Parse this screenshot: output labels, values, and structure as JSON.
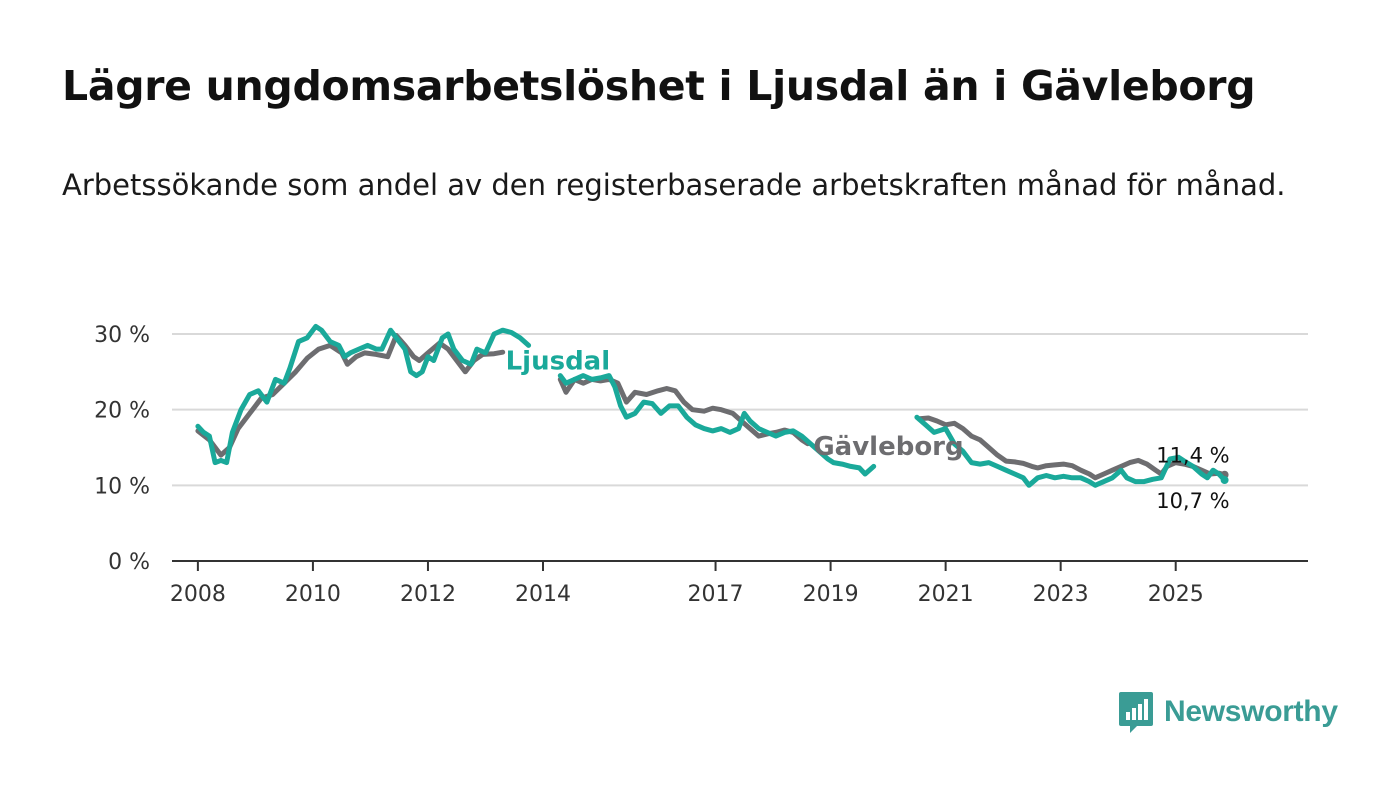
{
  "title": "Lägre ungdomsarbetslöshet i Ljusdal än i Gävleborg",
  "subtitle": "Arbetssökande som andel av den registerbaserade arbetskraften månad för månad.",
  "brand": "Newsworthy",
  "colors": {
    "ljusdal": "#1aa99a",
    "gavleborg": "#6d6d70",
    "grid": "#d9d9d9",
    "axis": "#333333",
    "brand": "#3a9c95"
  },
  "chart_data": {
    "type": "line",
    "title": "Lägre ungdomsarbetslöshet i Ljusdal än i Gävleborg",
    "xlabel": "",
    "ylabel": "",
    "xlim": [
      2007.55,
      2027.3
    ],
    "ylim": [
      0,
      30
    ],
    "y_ticks": [
      0,
      10,
      20,
      30
    ],
    "y_tick_labels": [
      "0 %",
      "10 %",
      "20 %",
      "30 %"
    ],
    "x_ticks": [
      2008,
      2010,
      2012,
      2014,
      2017,
      2019,
      2021,
      2023,
      2025
    ],
    "x_tick_labels": [
      "2008",
      "2010",
      "2012",
      "2014",
      "2017",
      "2019",
      "2021",
      "2023",
      "2025"
    ],
    "series": [
      {
        "name": "Gävleborg",
        "label": "Gävleborg",
        "color": "#6d6d70",
        "end_label": "11,4 %",
        "points": [
          [
            2008.0,
            17.2
          ],
          [
            2008.2,
            16.0
          ],
          [
            2008.4,
            14.0
          ],
          [
            2008.55,
            15.0
          ],
          [
            2008.7,
            17.5
          ],
          [
            2008.9,
            19.5
          ],
          [
            2009.1,
            21.5
          ],
          [
            2009.3,
            22.0
          ],
          [
            2009.5,
            23.5
          ],
          [
            2009.7,
            25.0
          ],
          [
            2009.9,
            26.8
          ],
          [
            2010.1,
            28.0
          ],
          [
            2010.3,
            28.5
          ],
          [
            2010.5,
            27.5
          ],
          [
            2010.6,
            26.0
          ],
          [
            2010.75,
            27.0
          ],
          [
            2010.9,
            27.5
          ],
          [
            2011.1,
            27.3
          ],
          [
            2011.3,
            27.0
          ],
          [
            2011.45,
            29.8
          ],
          [
            2011.6,
            28.5
          ],
          [
            2011.75,
            27.0
          ],
          [
            2011.85,
            26.5
          ],
          [
            2012.0,
            27.5
          ],
          [
            2012.2,
            28.8
          ],
          [
            2012.35,
            28.0
          ],
          [
            2012.5,
            26.5
          ],
          [
            2012.65,
            25.0
          ],
          [
            2012.8,
            26.5
          ],
          [
            2012.95,
            27.3
          ],
          [
            2013.15,
            27.4
          ],
          [
            2013.3,
            27.6
          ],
          [
            2014.3,
            24.0
          ],
          [
            2014.4,
            22.3
          ],
          [
            2014.55,
            24.0
          ],
          [
            2014.7,
            23.5
          ],
          [
            2014.85,
            24.0
          ],
          [
            2015.0,
            23.8
          ],
          [
            2015.15,
            24.0
          ],
          [
            2015.3,
            23.5
          ],
          [
            2015.45,
            21.0
          ],
          [
            2015.6,
            22.3
          ],
          [
            2015.8,
            22.0
          ],
          [
            2016.0,
            22.5
          ],
          [
            2016.15,
            22.8
          ],
          [
            2016.3,
            22.5
          ],
          [
            2016.45,
            21.0
          ],
          [
            2016.6,
            20.0
          ],
          [
            2016.8,
            19.8
          ],
          [
            2016.95,
            20.2
          ],
          [
            2017.1,
            20.0
          ],
          [
            2017.3,
            19.5
          ],
          [
            2017.45,
            18.5
          ],
          [
            2017.6,
            17.5
          ],
          [
            2017.75,
            16.5
          ],
          [
            2017.9,
            16.8
          ],
          [
            2018.05,
            17.0
          ],
          [
            2018.2,
            17.3
          ],
          [
            2018.35,
            17.0
          ],
          [
            2018.5,
            16.0
          ],
          [
            2018.6,
            15.5
          ],
          [
            2020.55,
            18.8
          ],
          [
            2020.7,
            18.9
          ],
          [
            2020.85,
            18.5
          ],
          [
            2021.0,
            18.0
          ],
          [
            2021.15,
            18.2
          ],
          [
            2021.3,
            17.5
          ],
          [
            2021.45,
            16.5
          ],
          [
            2021.6,
            16.0
          ],
          [
            2021.75,
            15.0
          ],
          [
            2021.9,
            14.0
          ],
          [
            2022.05,
            13.2
          ],
          [
            2022.2,
            13.1
          ],
          [
            2022.35,
            12.9
          ],
          [
            2022.5,
            12.5
          ],
          [
            2022.6,
            12.3
          ],
          [
            2022.75,
            12.6
          ],
          [
            2022.9,
            12.7
          ],
          [
            2023.05,
            12.8
          ],
          [
            2023.2,
            12.6
          ],
          [
            2023.35,
            12.0
          ],
          [
            2023.5,
            11.5
          ],
          [
            2023.6,
            11.0
          ],
          [
            2023.75,
            11.5
          ],
          [
            2023.9,
            12.0
          ],
          [
            2024.05,
            12.5
          ],
          [
            2024.2,
            13.0
          ],
          [
            2024.35,
            13.3
          ],
          [
            2024.5,
            12.8
          ],
          [
            2024.65,
            12.0
          ],
          [
            2024.75,
            11.5
          ],
          [
            2024.85,
            12.5
          ],
          [
            2025.0,
            13.0
          ],
          [
            2025.15,
            12.8
          ],
          [
            2025.3,
            12.5
          ],
          [
            2025.45,
            12.0
          ],
          [
            2025.6,
            11.5
          ],
          [
            2025.75,
            11.6
          ],
          [
            2025.85,
            11.4
          ]
        ]
      },
      {
        "name": "Ljusdal",
        "label": "Ljusdal",
        "color": "#1aa99a",
        "end_label": "10,7 %",
        "points": [
          [
            2008.0,
            17.8
          ],
          [
            2008.1,
            17.0
          ],
          [
            2008.2,
            16.5
          ],
          [
            2008.3,
            13.0
          ],
          [
            2008.4,
            13.3
          ],
          [
            2008.5,
            13.0
          ],
          [
            2008.6,
            17.0
          ],
          [
            2008.75,
            20.0
          ],
          [
            2008.9,
            22.0
          ],
          [
            2009.05,
            22.5
          ],
          [
            2009.2,
            21.0
          ],
          [
            2009.35,
            24.0
          ],
          [
            2009.5,
            23.5
          ],
          [
            2009.6,
            25.5
          ],
          [
            2009.75,
            29.0
          ],
          [
            2009.9,
            29.5
          ],
          [
            2010.05,
            31.0
          ],
          [
            2010.15,
            30.5
          ],
          [
            2010.3,
            29.0
          ],
          [
            2010.45,
            28.5
          ],
          [
            2010.55,
            27.0
          ],
          [
            2010.65,
            27.5
          ],
          [
            2010.8,
            28.0
          ],
          [
            2010.95,
            28.5
          ],
          [
            2011.1,
            28.0
          ],
          [
            2011.2,
            28.0
          ],
          [
            2011.35,
            30.5
          ],
          [
            2011.45,
            29.5
          ],
          [
            2011.6,
            28.0
          ],
          [
            2011.7,
            25.0
          ],
          [
            2011.8,
            24.5
          ],
          [
            2011.9,
            25.0
          ],
          [
            2012.0,
            27.0
          ],
          [
            2012.1,
            26.5
          ],
          [
            2012.25,
            29.5
          ],
          [
            2012.35,
            30.0
          ],
          [
            2012.45,
            28.0
          ],
          [
            2012.6,
            26.5
          ],
          [
            2012.75,
            26.0
          ],
          [
            2012.85,
            28.0
          ],
          [
            2013.0,
            27.5
          ],
          [
            2013.15,
            30.0
          ],
          [
            2013.3,
            30.5
          ],
          [
            2013.45,
            30.2
          ],
          [
            2013.6,
            29.5
          ],
          [
            2013.75,
            28.5
          ],
          [
            2014.3,
            24.5
          ],
          [
            2014.4,
            23.5
          ],
          [
            2014.55,
            24.0
          ],
          [
            2014.7,
            24.5
          ],
          [
            2014.85,
            24.0
          ],
          [
            2015.0,
            24.2
          ],
          [
            2015.15,
            24.5
          ],
          [
            2015.25,
            23.0
          ],
          [
            2015.35,
            20.5
          ],
          [
            2015.45,
            19.0
          ],
          [
            2015.6,
            19.5
          ],
          [
            2015.75,
            21.0
          ],
          [
            2015.9,
            20.8
          ],
          [
            2016.05,
            19.5
          ],
          [
            2016.2,
            20.5
          ],
          [
            2016.35,
            20.5
          ],
          [
            2016.5,
            19.0
          ],
          [
            2016.65,
            18.0
          ],
          [
            2016.8,
            17.5
          ],
          [
            2016.95,
            17.2
          ],
          [
            2017.1,
            17.5
          ],
          [
            2017.25,
            17.0
          ],
          [
            2017.4,
            17.5
          ],
          [
            2017.5,
            19.5
          ],
          [
            2017.6,
            18.5
          ],
          [
            2017.75,
            17.5
          ],
          [
            2017.9,
            17.0
          ],
          [
            2018.05,
            16.5
          ],
          [
            2018.2,
            17.0
          ],
          [
            2018.35,
            17.2
          ],
          [
            2018.5,
            16.5
          ],
          [
            2018.65,
            15.5
          ],
          [
            2018.8,
            14.5
          ],
          [
            2018.95,
            13.5
          ],
          [
            2019.05,
            13.0
          ],
          [
            2019.2,
            12.8
          ],
          [
            2019.35,
            12.5
          ],
          [
            2019.5,
            12.3
          ],
          [
            2019.6,
            11.5
          ],
          [
            2019.75,
            12.5
          ],
          [
            2020.5,
            19.0
          ],
          [
            2020.65,
            18.0
          ],
          [
            2020.8,
            17.0
          ],
          [
            2021.0,
            17.5
          ],
          [
            2021.15,
            15.5
          ],
          [
            2021.3,
            14.5
          ],
          [
            2021.45,
            13.0
          ],
          [
            2021.6,
            12.8
          ],
          [
            2021.75,
            13.0
          ],
          [
            2021.9,
            12.5
          ],
          [
            2022.05,
            12.0
          ],
          [
            2022.2,
            11.5
          ],
          [
            2022.35,
            11.0
          ],
          [
            2022.45,
            10.0
          ],
          [
            2022.6,
            11.0
          ],
          [
            2022.75,
            11.3
          ],
          [
            2022.9,
            11.0
          ],
          [
            2023.05,
            11.2
          ],
          [
            2023.2,
            11.0
          ],
          [
            2023.35,
            11.0
          ],
          [
            2023.5,
            10.5
          ],
          [
            2023.6,
            10.0
          ],
          [
            2023.75,
            10.5
          ],
          [
            2023.9,
            11.0
          ],
          [
            2024.05,
            12.0
          ],
          [
            2024.15,
            11.0
          ],
          [
            2024.3,
            10.5
          ],
          [
            2024.45,
            10.5
          ],
          [
            2024.6,
            10.8
          ],
          [
            2024.75,
            11.0
          ],
          [
            2024.9,
            13.5
          ],
          [
            2025.05,
            13.7
          ],
          [
            2025.15,
            13.2
          ],
          [
            2025.3,
            12.5
          ],
          [
            2025.45,
            11.5
          ],
          [
            2025.55,
            11.0
          ],
          [
            2025.65,
            12.0
          ],
          [
            2025.75,
            11.5
          ],
          [
            2025.85,
            10.7
          ]
        ]
      }
    ]
  }
}
